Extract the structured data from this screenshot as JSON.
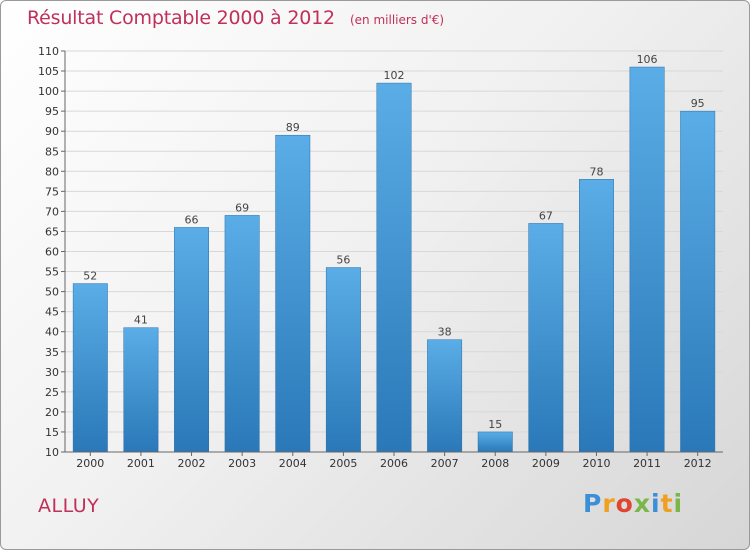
{
  "header": {
    "title": "Résultat Comptable 2000 à 2012",
    "subtitle": "(en milliers d'€)"
  },
  "commune": "ALLUY",
  "logo": {
    "text": "Proxiti",
    "letters": [
      {
        "ch": "P",
        "color": "#3a8fd6"
      },
      {
        "ch": "r",
        "color": "#f0a020"
      },
      {
        "ch": "o",
        "color": "#e0452f"
      },
      {
        "ch": "x",
        "color": "#7ab648"
      },
      {
        "ch": "i",
        "color": "#3a8fd6"
      },
      {
        "ch": "t",
        "color": "#f0a020"
      },
      {
        "ch": "i",
        "color": "#7ab648"
      }
    ]
  },
  "colors": {
    "title": "#c0305a",
    "bar_top": "#5aade6",
    "bar_bottom": "#2a78b8"
  },
  "chart_data": {
    "type": "bar",
    "title": "Résultat Comptable 2000 à 2012",
    "subtitle": "(en milliers d'€)",
    "xlabel": "",
    "ylabel": "",
    "categories": [
      "2000",
      "2001",
      "2002",
      "2003",
      "2004",
      "2005",
      "2006",
      "2007",
      "2008",
      "2009",
      "2010",
      "2011",
      "2012"
    ],
    "values": [
      52,
      41,
      66,
      69,
      89,
      56,
      102,
      38,
      15,
      67,
      78,
      106,
      95
    ],
    "ylim": [
      10,
      110
    ],
    "yticks": [
      10,
      15,
      20,
      25,
      30,
      35,
      40,
      45,
      50,
      55,
      60,
      65,
      70,
      75,
      80,
      85,
      90,
      95,
      100,
      105,
      110
    ],
    "grid": true
  }
}
